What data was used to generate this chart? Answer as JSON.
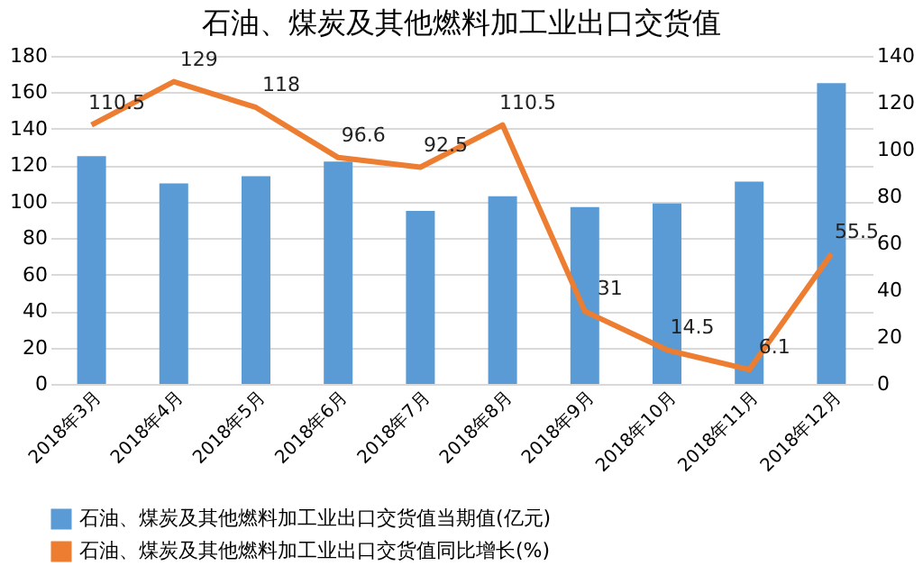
{
  "chart_data": {
    "type": "bar",
    "title": "石油、煤炭及其他燃料加工业出口交货值",
    "categories": [
      "2018年3月",
      "2018年4月",
      "2018年5月",
      "2018年6月",
      "2018年7月",
      "2018年8月",
      "2018年9月",
      "2018年10月",
      "2018年11月",
      "2018年12月"
    ],
    "series": [
      {
        "name": "石油、煤炭及其他燃料加工业出口交货值当期值(亿元)",
        "color": "#5b9bd5",
        "values": [
          125,
          110,
          114,
          122,
          95,
          103,
          97,
          99,
          111,
          165
        ]
      },
      {
        "name": "石油、煤炭及其他燃料加工业出口交货值同比增长(%)",
        "color": "#ed7d31",
        "type": "line",
        "axis": "y2",
        "data_labels": true,
        "values": [
          110.5,
          129,
          118,
          96.6,
          92.5,
          110.5,
          31,
          14.5,
          6.1,
          55.5
        ]
      }
    ],
    "ylim": [
      0,
      180
    ],
    "yticks": [
      0,
      20,
      40,
      60,
      80,
      100,
      120,
      140,
      160,
      180
    ],
    "y2lim": [
      0,
      140
    ],
    "y2ticks": [
      0,
      20,
      40,
      60,
      80,
      100,
      120,
      140
    ],
    "grid": "y",
    "legend": "bottom",
    "marker": "none"
  }
}
